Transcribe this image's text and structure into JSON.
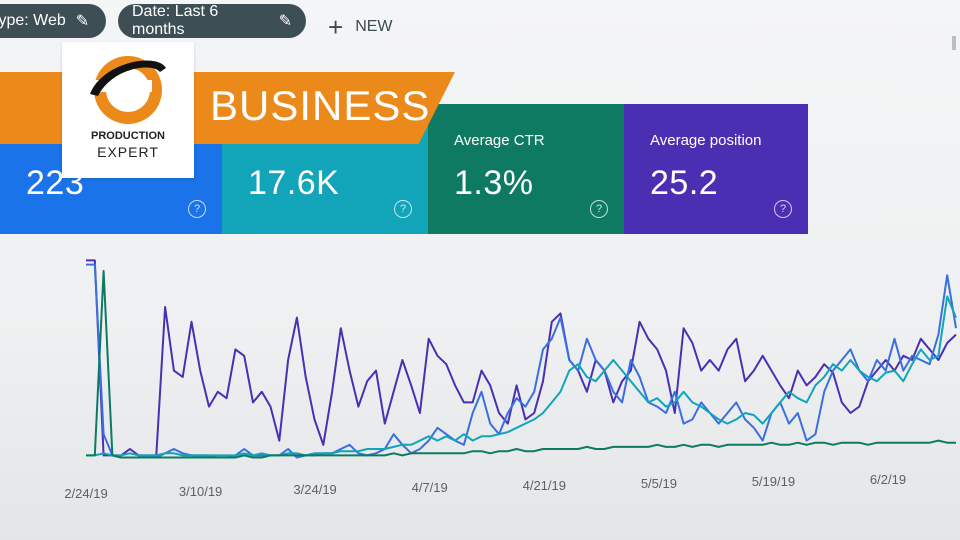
{
  "filters": {
    "type_label": "type: Web",
    "date_label": "Date: Last 6 months",
    "new_label": "NEW"
  },
  "cards": {
    "clicks_value": "223",
    "impressions_value": "17.6K",
    "ctr_label": "Average CTR",
    "ctr_value": "1.3%",
    "position_label": "Average position",
    "position_value": "25.2"
  },
  "brand": {
    "banner_text": "BUSINESS",
    "logo_line1": "PRODUCTION",
    "logo_line2": "EXPERT"
  },
  "colors": {
    "clicks": "#1a73e8",
    "impressions": "#12a4b8",
    "ctr": "#0e7a62",
    "position": "#4b2fb3",
    "banner": "#eb8a1a"
  },
  "chart_data": {
    "type": "line",
    "x_ticks": [
      "2/24/19",
      "3/10/19",
      "3/24/19",
      "4/7/19",
      "4/21/19",
      "5/5/19",
      "5/19/19",
      "6/2/19"
    ],
    "series": [
      {
        "key": "position",
        "color": "#4b2fb3",
        "values": [
          0.97,
          0.97,
          0.05,
          0.05,
          0.05,
          0.08,
          0.05,
          0.05,
          0.05,
          0.75,
          0.45,
          0.42,
          0.68,
          0.45,
          0.28,
          0.35,
          0.32,
          0.55,
          0.52,
          0.3,
          0.35,
          0.28,
          0.12,
          0.5,
          0.7,
          0.42,
          0.22,
          0.1,
          0.35,
          0.65,
          0.45,
          0.28,
          0.4,
          0.45,
          0.2,
          0.35,
          0.5,
          0.38,
          0.25,
          0.6,
          0.52,
          0.48,
          0.38,
          0.3,
          0.3,
          0.45,
          0.38,
          0.25,
          0.2,
          0.38,
          0.22,
          0.25,
          0.4,
          0.68,
          0.72,
          0.5,
          0.45,
          0.35,
          0.5,
          0.45,
          0.3,
          0.4,
          0.45,
          0.68,
          0.6,
          0.55,
          0.45,
          0.25,
          0.65,
          0.58,
          0.45,
          0.5,
          0.45,
          0.55,
          0.6,
          0.4,
          0.45,
          0.52,
          0.45,
          0.38,
          0.32,
          0.45,
          0.38,
          0.42,
          0.48,
          0.44,
          0.3,
          0.25,
          0.28,
          0.4,
          0.45,
          0.5,
          0.45,
          0.52,
          0.5,
          0.6,
          0.55,
          0.5,
          0.58,
          0.62
        ]
      },
      {
        "key": "clicks",
        "color": "#3a6fe0",
        "values": [
          0.95,
          0.95,
          0.15,
          0.05,
          0.04,
          0.04,
          0.04,
          0.04,
          0.04,
          0.06,
          0.08,
          0.06,
          0.05,
          0.05,
          0.05,
          0.04,
          0.04,
          0.05,
          0.08,
          0.05,
          0.05,
          0.05,
          0.05,
          0.08,
          0.04,
          0.05,
          0.05,
          0.06,
          0.06,
          0.08,
          0.1,
          0.06,
          0.05,
          0.06,
          0.08,
          0.15,
          0.1,
          0.06,
          0.08,
          0.12,
          0.18,
          0.15,
          0.12,
          0.1,
          0.25,
          0.35,
          0.2,
          0.15,
          0.25,
          0.32,
          0.28,
          0.35,
          0.55,
          0.6,
          0.7,
          0.5,
          0.45,
          0.6,
          0.5,
          0.45,
          0.35,
          0.3,
          0.5,
          0.42,
          0.3,
          0.28,
          0.25,
          0.35,
          0.2,
          0.22,
          0.3,
          0.25,
          0.2,
          0.25,
          0.3,
          0.22,
          0.18,
          0.12,
          0.25,
          0.3,
          0.2,
          0.25,
          0.12,
          0.15,
          0.35,
          0.45,
          0.5,
          0.55,
          0.45,
          0.4,
          0.5,
          0.45,
          0.6,
          0.45,
          0.52,
          0.5,
          0.48,
          0.62,
          0.9,
          0.65
        ]
      },
      {
        "key": "impressions",
        "color": "#12a4b8",
        "values": [
          0.05,
          0.05,
          0.06,
          0.05,
          0.05,
          0.06,
          0.05,
          0.05,
          0.05,
          0.06,
          0.06,
          0.05,
          0.05,
          0.05,
          0.05,
          0.05,
          0.05,
          0.05,
          0.06,
          0.05,
          0.06,
          0.05,
          0.05,
          0.06,
          0.06,
          0.05,
          0.06,
          0.06,
          0.06,
          0.07,
          0.07,
          0.07,
          0.08,
          0.08,
          0.08,
          0.09,
          0.1,
          0.1,
          0.12,
          0.14,
          0.12,
          0.14,
          0.12,
          0.15,
          0.12,
          0.14,
          0.14,
          0.15,
          0.16,
          0.18,
          0.2,
          0.22,
          0.25,
          0.3,
          0.35,
          0.45,
          0.48,
          0.42,
          0.4,
          0.45,
          0.5,
          0.45,
          0.4,
          0.35,
          0.3,
          0.32,
          0.28,
          0.3,
          0.35,
          0.3,
          0.28,
          0.25,
          0.22,
          0.2,
          0.22,
          0.25,
          0.24,
          0.2,
          0.25,
          0.3,
          0.35,
          0.32,
          0.3,
          0.38,
          0.42,
          0.48,
          0.45,
          0.5,
          0.45,
          0.42,
          0.4,
          0.44,
          0.45,
          0.4,
          0.48,
          0.55,
          0.5,
          0.52,
          0.8,
          0.7
        ]
      },
      {
        "key": "ctr",
        "color": "#0e7a62",
        "values": [
          0.05,
          0.05,
          0.92,
          0.05,
          0.04,
          0.04,
          0.04,
          0.04,
          0.04,
          0.04,
          0.04,
          0.04,
          0.04,
          0.04,
          0.04,
          0.04,
          0.04,
          0.04,
          0.05,
          0.04,
          0.04,
          0.05,
          0.05,
          0.05,
          0.05,
          0.05,
          0.05,
          0.05,
          0.05,
          0.05,
          0.05,
          0.05,
          0.05,
          0.05,
          0.05,
          0.06,
          0.05,
          0.06,
          0.06,
          0.06,
          0.06,
          0.06,
          0.06,
          0.06,
          0.07,
          0.07,
          0.06,
          0.07,
          0.07,
          0.08,
          0.07,
          0.07,
          0.08,
          0.08,
          0.08,
          0.08,
          0.08,
          0.09,
          0.08,
          0.08,
          0.09,
          0.09,
          0.09,
          0.09,
          0.09,
          0.1,
          0.09,
          0.09,
          0.1,
          0.09,
          0.1,
          0.1,
          0.09,
          0.1,
          0.1,
          0.1,
          0.1,
          0.1,
          0.11,
          0.1,
          0.1,
          0.11,
          0.1,
          0.11,
          0.11,
          0.1,
          0.11,
          0.11,
          0.11,
          0.1,
          0.11,
          0.11,
          0.11,
          0.11,
          0.11,
          0.11,
          0.11,
          0.12,
          0.11,
          0.11
        ]
      }
    ],
    "ylim": [
      0,
      1
    ],
    "grid": false,
    "legend": "none"
  }
}
